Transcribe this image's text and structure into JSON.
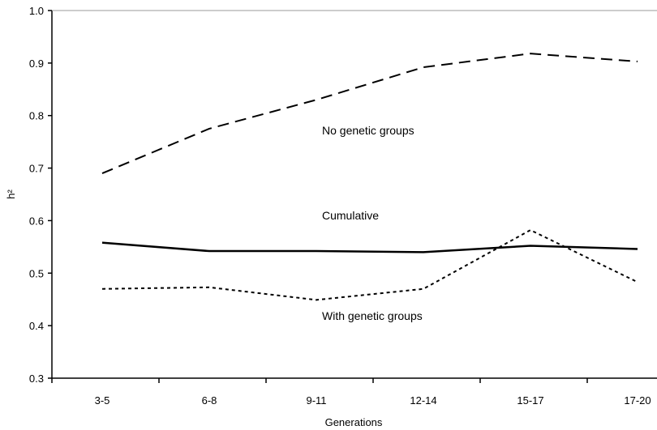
{
  "chart_data": {
    "type": "line",
    "title": "",
    "xlabel": "Generations",
    "ylabel": "h²",
    "ylim": [
      0.3,
      1.0
    ],
    "yticks": [
      "0.3",
      "0.4",
      "0.5",
      "0.6",
      "0.7",
      "0.8",
      "0.9",
      "1.0"
    ],
    "categories": [
      "3-5",
      "6-8",
      "9-11",
      "12-14",
      "15-17",
      "17-20"
    ],
    "grid": false,
    "legend": "none (series labeled inline)",
    "series": [
      {
        "name": "No  genetic groups",
        "style": "dashed",
        "values": [
          0.69,
          0.775,
          0.83,
          0.892,
          0.918,
          0.903
        ]
      },
      {
        "name": "Cumulative",
        "style": "solid",
        "values": [
          0.558,
          0.542,
          0.542,
          0.54,
          0.552,
          0.546
        ]
      },
      {
        "name": "With genetic groups",
        "style": "dotted",
        "values": [
          0.47,
          0.473,
          0.449,
          0.47,
          0.582,
          0.483
        ]
      }
    ]
  }
}
